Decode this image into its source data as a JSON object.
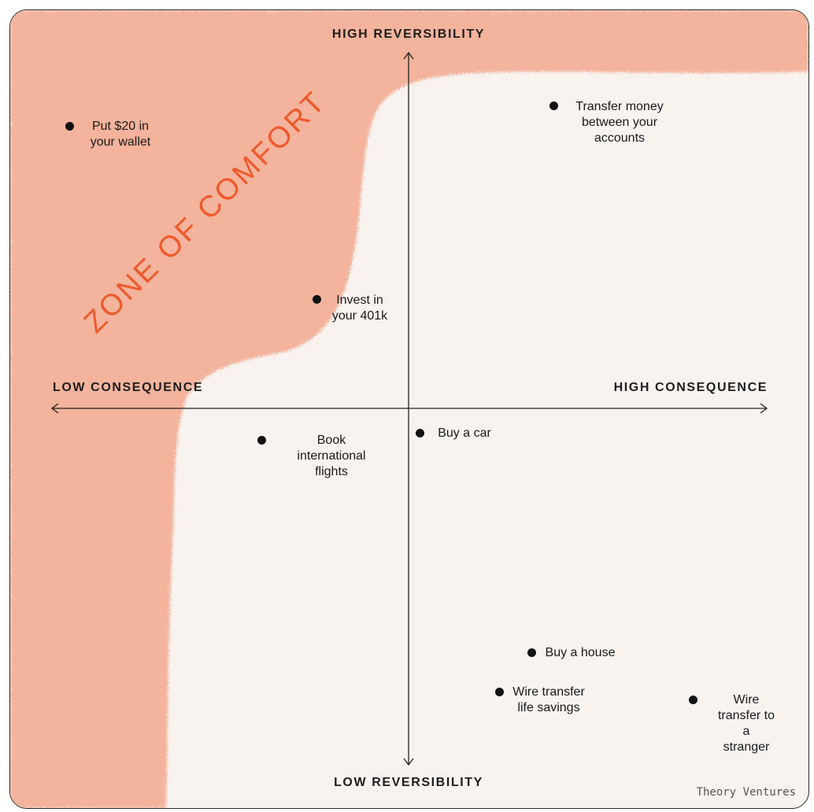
{
  "axes": {
    "top": "HIGH REVERSIBILITY",
    "bottom": "LOW REVERSIBILITY",
    "left": "LOW CONSEQUENCE",
    "right": "HIGH CONSEQUENCE"
  },
  "zone_label": "ZONE OF COMFORT",
  "brand": "Theory Ventures",
  "colors": {
    "zone": "#f3b39c",
    "zone_text": "#ef5a2b",
    "background": "#f9f3f0",
    "dot": "#111111"
  },
  "items": [
    {
      "label": "Put $20 in\nyour wallet"
    },
    {
      "label": "Transfer money\nbetween your\naccounts"
    },
    {
      "label": "Invest in\nyour 401k"
    },
    {
      "label": "Book\ninternational\nflights"
    },
    {
      "label": "Buy a car"
    },
    {
      "label": "Buy a house"
    },
    {
      "label": "Wire transfer\nlife savings"
    },
    {
      "label": "Wire\ntransfer to a\nstranger"
    }
  ]
}
